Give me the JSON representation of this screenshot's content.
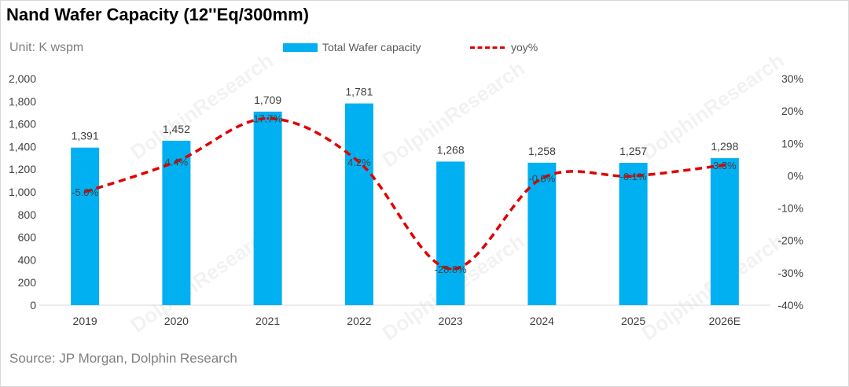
{
  "title": "Nand Wafer Capacity (12''Eq/300mm)",
  "unit": "Unit: K wspm",
  "source": "Source: JP Morgan, Dolphin Research",
  "watermark": "DolphinResearch",
  "legend": {
    "bar": "Total Wafer capacity",
    "line": "yoy%"
  },
  "colors": {
    "bar": "#00b0f0",
    "line": "#e00000",
    "text": "#404040",
    "axis": "#d9d9d9"
  },
  "chart_data": {
    "type": "bar",
    "categories": [
      "2019",
      "2020",
      "2021",
      "2022",
      "2023",
      "2024",
      "2025",
      "2026E"
    ],
    "series": [
      {
        "name": "Total Wafer capacity",
        "type": "bar",
        "axis": "left",
        "values": [
          1391,
          1452,
          1709,
          1781,
          1268,
          1258,
          1257,
          1298
        ],
        "labels": [
          "1,391",
          "1,452",
          "1,709",
          "1,781",
          "1,268",
          "1,258",
          "1,257",
          "1,298"
        ]
      },
      {
        "name": "yoy%",
        "type": "line",
        "axis": "right",
        "style": "dashed-smooth",
        "values": [
          -5.0,
          4.4,
          17.7,
          4.2,
          -28.8,
          -0.8,
          -0.1,
          3.3
        ],
        "labels": [
          "-5.0%",
          "4.4%",
          "17.7%",
          "4.2%",
          "-28.8%",
          "-0.8%",
          "-0.1%",
          "3.3%"
        ]
      }
    ],
    "y_left": {
      "min": 0,
      "max": 2000,
      "step": 200,
      "tick_labels": [
        "0",
        "200",
        "400",
        "600",
        "800",
        "1,000",
        "1,200",
        "1,400",
        "1,600",
        "1,800",
        "2,000"
      ]
    },
    "y_right": {
      "min": -40,
      "max": 30,
      "step": 10,
      "tick_labels": [
        "-40%",
        "-30%",
        "-20%",
        "-10%",
        "0%",
        "10%",
        "20%",
        "30%"
      ]
    },
    "grid": false,
    "legend_position": "top"
  }
}
